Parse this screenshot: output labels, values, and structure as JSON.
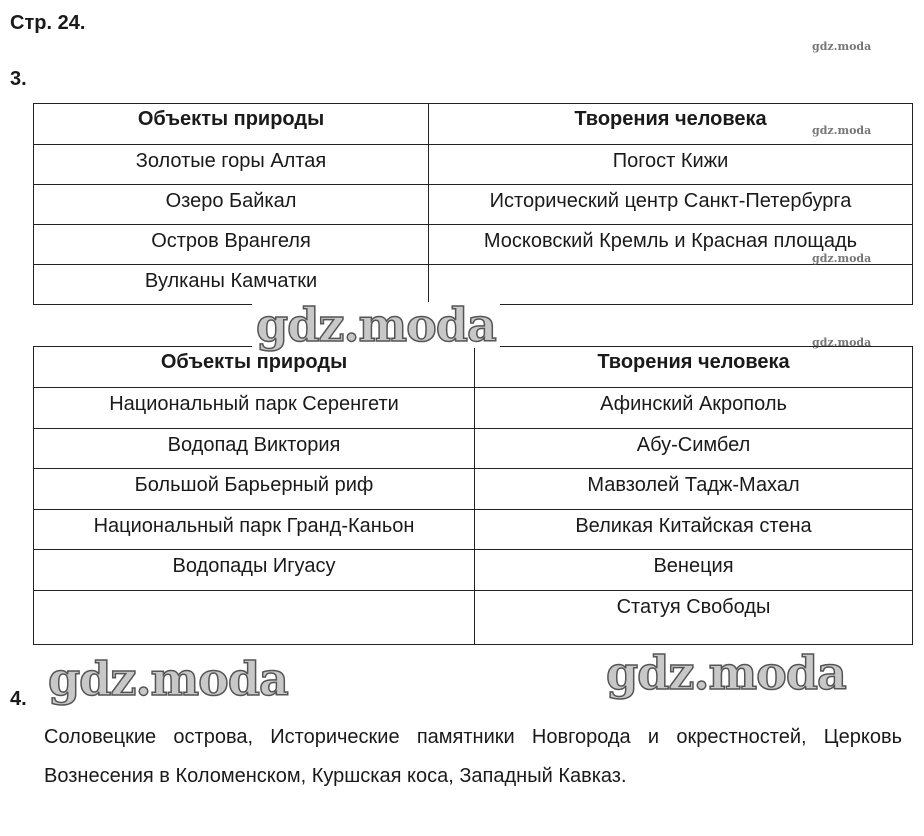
{
  "page_label": "Стр. 24.",
  "task3": {
    "number": "3.",
    "table1": {
      "headers": [
        "Объекты природы",
        "Творения человека"
      ],
      "rows": [
        [
          "Золотые горы Алтая",
          "Погост Кижи"
        ],
        [
          "Озеро Байкал",
          "Исторический центр Санкт-Петербурга"
        ],
        [
          "Остров Врангеля",
          "Московский Кремль и Красная площадь"
        ],
        [
          "Вулканы Камчатки",
          ""
        ]
      ]
    },
    "table2": {
      "headers": [
        "Объекты природы",
        "Творения человека"
      ],
      "rows": [
        [
          "Национальный парк Серенгети",
          "Афинский Акрополь"
        ],
        [
          "Водопад Виктория",
          "Абу-Симбел"
        ],
        [
          "Большой Барьерный риф",
          "Мавзолей Тадж-Махал"
        ],
        [
          "Национальный парк Гранд-Каньон",
          "Великая Китайская стена"
        ],
        [
          "Водопады Игуасу",
          "Венеция"
        ],
        [
          "",
          "Статуя Свободы"
        ]
      ]
    }
  },
  "task4": {
    "number": "4.",
    "text": "Соловецкие острова, Исторические памятники Новгорода и окрестностей, Церковь Вознесения в Коломенском, Куршская коса, Западный Кавказ."
  },
  "watermark": "gdz.moda"
}
